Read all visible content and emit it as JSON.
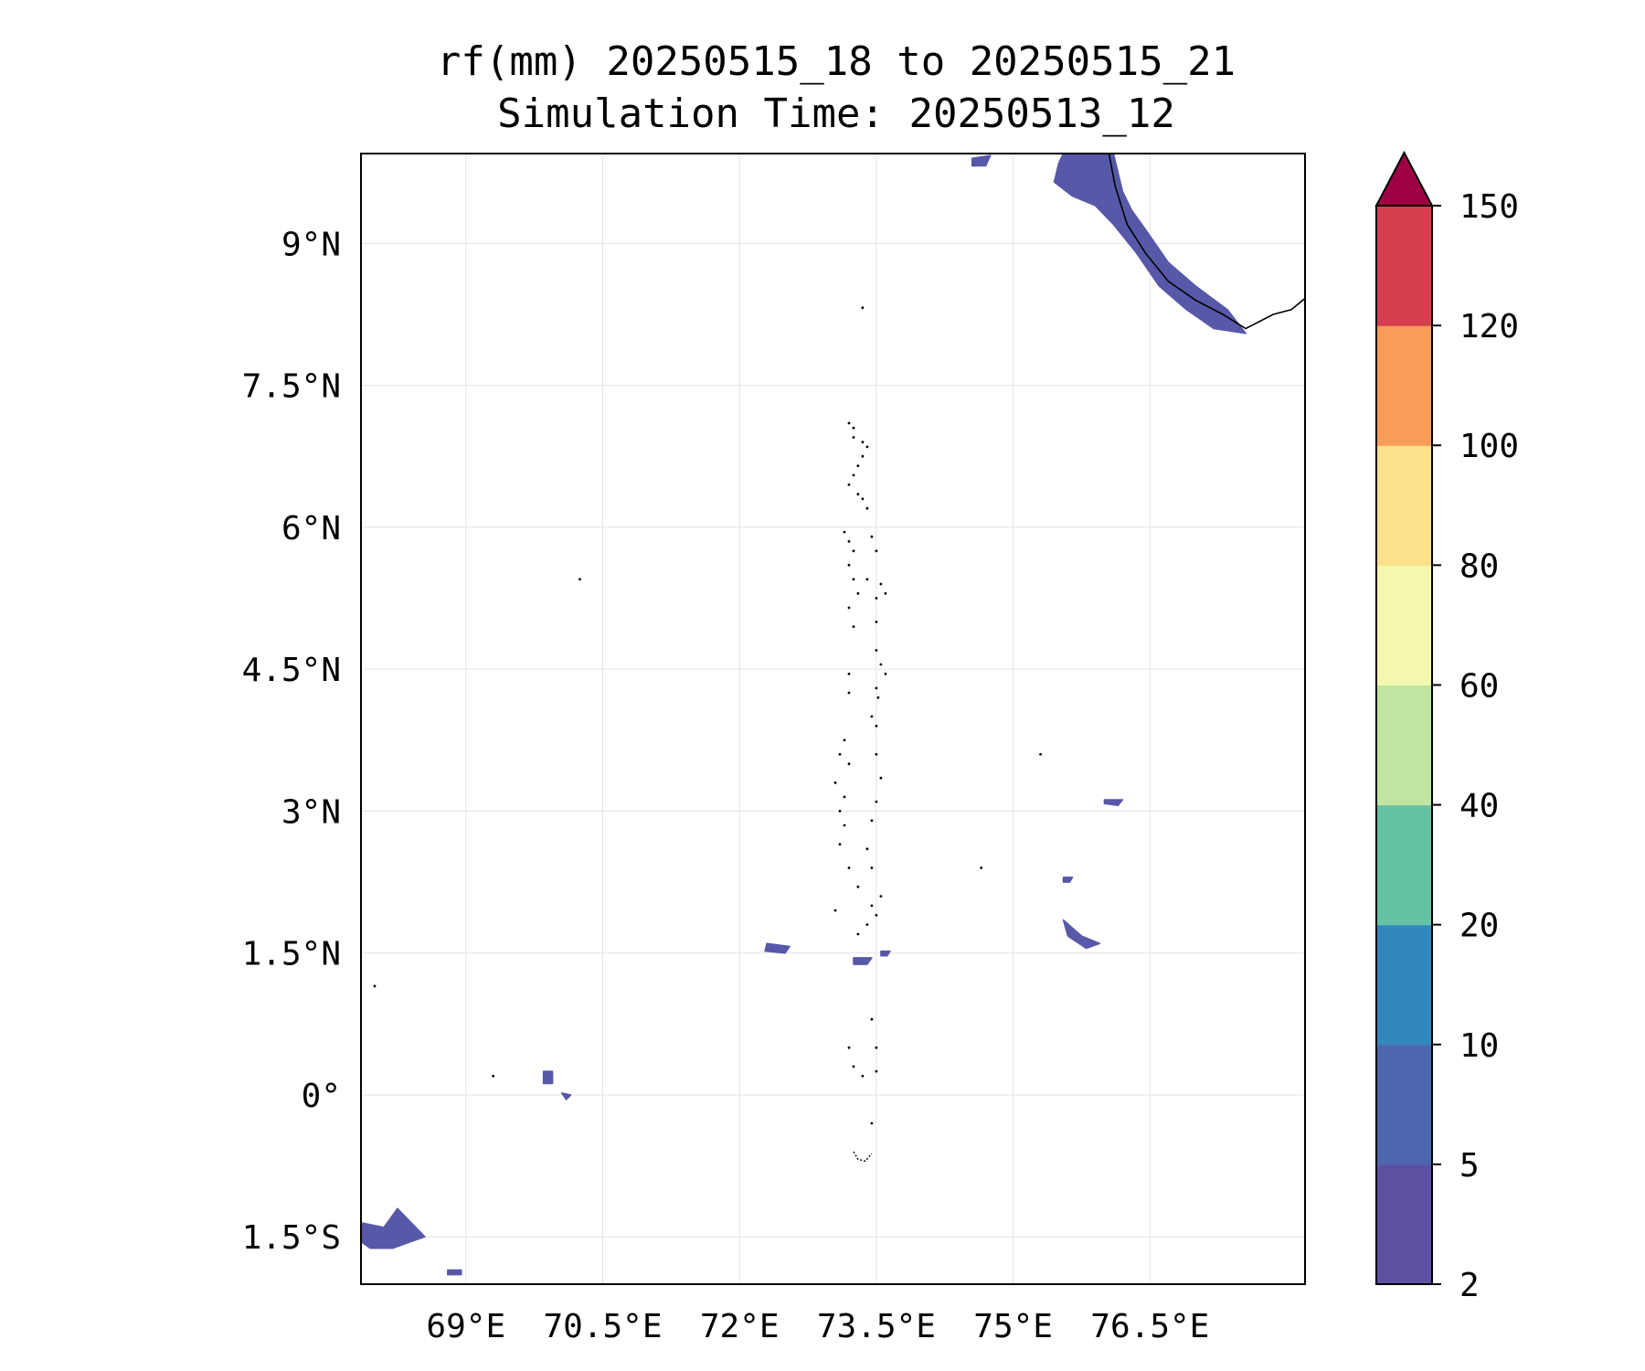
{
  "title_line1": "rf(mm) 20250515_18 to 20250515_21",
  "title_line2": "Simulation Time: 20250513_12",
  "map": {
    "lon_range": [
      67.85,
      78.2
    ],
    "lat_range": [
      -2.0,
      9.95
    ],
    "lon_ticks": [
      {
        "value": 69,
        "label": "69°E"
      },
      {
        "value": 70.5,
        "label": "70.5°E"
      },
      {
        "value": 72,
        "label": "72°E"
      },
      {
        "value": 73.5,
        "label": "73.5°E"
      },
      {
        "value": 75,
        "label": "75°E"
      },
      {
        "value": 76.5,
        "label": "76.5°E"
      }
    ],
    "lat_ticks": [
      {
        "value": 9,
        "label": "9°N"
      },
      {
        "value": 7.5,
        "label": "7.5°N"
      },
      {
        "value": 6,
        "label": "6°N"
      },
      {
        "value": 4.5,
        "label": "4.5°N"
      },
      {
        "value": 3,
        "label": "3°N"
      },
      {
        "value": 1.5,
        "label": "1.5°N"
      },
      {
        "value": 0,
        "label": "0°"
      },
      {
        "value": -1.5,
        "label": "1.5°S"
      }
    ],
    "gridlines": true,
    "coastline_india": [
      [
        76.05,
        9.95
      ],
      [
        76.12,
        9.6
      ],
      [
        76.25,
        9.2
      ],
      [
        76.45,
        8.9
      ],
      [
        76.7,
        8.6
      ],
      [
        77.0,
        8.4
      ],
      [
        77.3,
        8.25
      ],
      [
        77.55,
        8.1
      ],
      [
        77.85,
        8.25
      ],
      [
        78.05,
        8.3
      ],
      [
        78.2,
        8.42
      ]
    ],
    "island_points": [
      [
        73.35,
        8.32
      ],
      [
        73.2,
        7.1
      ],
      [
        73.25,
        7.05
      ],
      [
        73.25,
        6.95
      ],
      [
        73.35,
        6.9
      ],
      [
        73.4,
        6.85
      ],
      [
        73.35,
        6.75
      ],
      [
        73.3,
        6.65
      ],
      [
        73.25,
        6.55
      ],
      [
        73.2,
        6.45
      ],
      [
        73.3,
        6.35
      ],
      [
        73.35,
        6.3
      ],
      [
        73.4,
        6.2
      ],
      [
        73.15,
        5.95
      ],
      [
        73.2,
        5.85
      ],
      [
        73.25,
        5.75
      ],
      [
        73.2,
        5.6
      ],
      [
        73.25,
        5.45
      ],
      [
        73.3,
        5.3
      ],
      [
        73.2,
        5.15
      ],
      [
        73.25,
        4.95
      ],
      [
        73.45,
        5.9
      ],
      [
        73.5,
        5.75
      ],
      [
        73.4,
        5.45
      ],
      [
        73.55,
        5.4
      ],
      [
        73.6,
        5.3
      ],
      [
        73.5,
        5.25
      ],
      [
        73.5,
        5.0
      ],
      [
        73.5,
        4.7
      ],
      [
        73.55,
        4.55
      ],
      [
        73.6,
        4.45
      ],
      [
        73.5,
        4.3
      ],
      [
        73.52,
        4.2
      ],
      [
        73.45,
        4.0
      ],
      [
        73.5,
        3.9
      ],
      [
        73.2,
        4.45
      ],
      [
        73.2,
        4.25
      ],
      [
        73.15,
        3.75
      ],
      [
        73.1,
        3.6
      ],
      [
        73.2,
        3.5
      ],
      [
        73.05,
        3.3
      ],
      [
        73.15,
        3.15
      ],
      [
        73.1,
        3.0
      ],
      [
        73.15,
        2.85
      ],
      [
        73.1,
        2.65
      ],
      [
        73.2,
        2.4
      ],
      [
        73.3,
        2.2
      ],
      [
        73.5,
        3.6
      ],
      [
        73.55,
        3.35
      ],
      [
        73.5,
        3.1
      ],
      [
        73.45,
        2.9
      ],
      [
        73.4,
        2.6
      ],
      [
        73.45,
        2.4
      ],
      [
        73.55,
        2.1
      ],
      [
        73.45,
        2.0
      ],
      [
        73.5,
        1.9
      ],
      [
        73.4,
        1.8
      ],
      [
        73.2,
        0.5
      ],
      [
        73.25,
        0.3
      ],
      [
        73.35,
        0.2
      ],
      [
        73.5,
        0.25
      ],
      [
        73.45,
        0.8
      ],
      [
        73.5,
        0.5
      ],
      [
        73.45,
        -0.3
      ],
      [
        73.05,
        1.95
      ],
      [
        73.3,
        1.7
      ],
      [
        70.25,
        5.45
      ],
      [
        68.0,
        1.15
      ],
      [
        69.3,
        0.2
      ],
      [
        74.65,
        2.4
      ],
      [
        75.3,
        3.6
      ]
    ],
    "addu_atoll": [
      [
        73.25,
        -0.6
      ],
      [
        73.3,
        -0.68
      ],
      [
        73.38,
        -0.7
      ],
      [
        73.45,
        -0.62
      ]
    ],
    "rain_patches": [
      {
        "name": "west-india-coast",
        "points": [
          [
            75.55,
            9.95
          ],
          [
            76.1,
            9.95
          ],
          [
            76.2,
            9.55
          ],
          [
            76.3,
            9.35
          ],
          [
            76.45,
            9.15
          ],
          [
            76.7,
            8.8
          ],
          [
            77.0,
            8.55
          ],
          [
            77.35,
            8.3
          ],
          [
            77.55,
            8.05
          ],
          [
            77.2,
            8.1
          ],
          [
            76.9,
            8.3
          ],
          [
            76.6,
            8.55
          ],
          [
            76.35,
            8.9
          ],
          [
            76.1,
            9.2
          ],
          [
            75.9,
            9.4
          ],
          [
            75.65,
            9.5
          ],
          [
            75.45,
            9.65
          ],
          [
            75.5,
            9.85
          ]
        ]
      },
      {
        "name": "lakshadweep-blob",
        "points": [
          [
            74.55,
            9.9
          ],
          [
            74.75,
            9.93
          ],
          [
            74.7,
            9.82
          ],
          [
            74.55,
            9.82
          ]
        ]
      },
      {
        "name": "blob-1",
        "points": [
          [
            72.3,
            1.6
          ],
          [
            72.55,
            1.57
          ],
          [
            72.5,
            1.5
          ],
          [
            72.28,
            1.52
          ]
        ]
      },
      {
        "name": "blob-2",
        "points": [
          [
            73.25,
            1.45
          ],
          [
            73.45,
            1.45
          ],
          [
            73.4,
            1.38
          ],
          [
            73.25,
            1.38
          ]
        ]
      },
      {
        "name": "blob-3",
        "points": [
          [
            73.55,
            1.52
          ],
          [
            73.65,
            1.52
          ],
          [
            73.62,
            1.47
          ],
          [
            73.55,
            1.47
          ]
        ]
      },
      {
        "name": "blob-4",
        "points": [
          [
            75.55,
            1.85
          ],
          [
            75.75,
            1.68
          ],
          [
            75.95,
            1.6
          ],
          [
            75.8,
            1.55
          ],
          [
            75.6,
            1.68
          ]
        ]
      },
      {
        "name": "blob-5",
        "points": [
          [
            75.55,
            2.3
          ],
          [
            75.65,
            2.3
          ],
          [
            75.62,
            2.25
          ],
          [
            75.55,
            2.25
          ]
        ]
      },
      {
        "name": "blob-6",
        "points": [
          [
            76.0,
            3.12
          ],
          [
            76.2,
            3.12
          ],
          [
            76.15,
            3.06
          ],
          [
            76.0,
            3.08
          ]
        ]
      },
      {
        "name": "blob-7",
        "points": [
          [
            69.85,
            0.25
          ],
          [
            69.95,
            0.25
          ],
          [
            69.95,
            0.12
          ],
          [
            69.85,
            0.12
          ]
        ]
      },
      {
        "name": "blob-8",
        "points": [
          [
            70.05,
            0.02
          ],
          [
            70.15,
            0.0
          ],
          [
            70.1,
            -0.05
          ]
        ]
      },
      {
        "name": "south-west-blob",
        "points": [
          [
            67.85,
            -1.35
          ],
          [
            68.1,
            -1.4
          ],
          [
            68.25,
            -1.2
          ],
          [
            68.4,
            -1.35
          ],
          [
            68.55,
            -1.5
          ],
          [
            68.4,
            -1.55
          ],
          [
            68.2,
            -1.62
          ],
          [
            67.95,
            -1.62
          ],
          [
            67.85,
            -1.55
          ]
        ]
      },
      {
        "name": "blob-9",
        "points": [
          [
            68.8,
            -1.85
          ],
          [
            68.95,
            -1.85
          ],
          [
            68.95,
            -1.9
          ],
          [
            68.8,
            -1.9
          ]
        ]
      }
    ]
  },
  "colorbar": {
    "levels": [
      "2",
      "5",
      "10",
      "20",
      "40",
      "60",
      "80",
      "100",
      "120",
      "150"
    ],
    "colors": [
      "#5e4fa2",
      "#4d67ae",
      "#3288bd",
      "#66c2a5",
      "#bfe5a0",
      "#f3f8ae",
      "#fde08b",
      "#f99c59",
      "#d53e4f"
    ],
    "extend_color": "#9e0142",
    "rain_color": "#5758a8"
  }
}
